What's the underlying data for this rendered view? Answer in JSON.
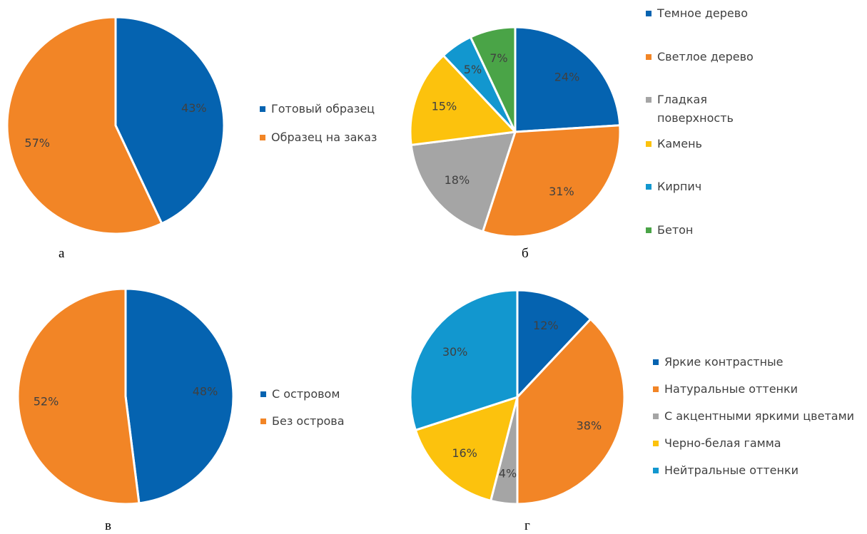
{
  "colors": {
    "blue": "#0563b0",
    "orange": "#f28526",
    "gray": "#a5a5a5",
    "yellow": "#fcc20d",
    "lightblue": "#1297cf",
    "green": "#4aa447"
  },
  "chart_data": [
    {
      "type": "pie",
      "panel": "а",
      "start_angle": 0,
      "legend_position": "right",
      "categories": [
        "Готовый образец",
        "Образец на заказ"
      ],
      "values": [
        43,
        57
      ],
      "labels": [
        "43%",
        "57%"
      ],
      "colors": [
        "#0563b0",
        "#f28526"
      ]
    },
    {
      "type": "pie",
      "panel": "б",
      "start_angle": 0,
      "legend_position": "right",
      "categories": [
        "Темное дерево",
        "Светлое дерево",
        "Гладкая поверхность",
        "Камень",
        "Кирпич",
        "Бетон"
      ],
      "values": [
        24,
        31,
        18,
        15,
        5,
        7
      ],
      "labels": [
        "24%",
        "31%",
        "18%",
        "15%",
        "5%",
        "7%"
      ],
      "colors": [
        "#0563b0",
        "#f28526",
        "#a5a5a5",
        "#fcc20d",
        "#1297cf",
        "#4aa447"
      ]
    },
    {
      "type": "pie",
      "panel": "в",
      "start_angle": 0,
      "legend_position": "right",
      "categories": [
        "С островом",
        "Без острова"
      ],
      "values": [
        48,
        52
      ],
      "labels": [
        "48%",
        "52%"
      ],
      "colors": [
        "#0563b0",
        "#f28526"
      ]
    },
    {
      "type": "pie",
      "panel": "г",
      "start_angle": 0,
      "legend_position": "right",
      "categories": [
        "Яркие контрастные",
        "Натуральные оттенки",
        "С акцентными яркими цветами",
        "Черно-белая гамма",
        "Нейтральные оттенки"
      ],
      "values": [
        12,
        38,
        4,
        16,
        30
      ],
      "labels": [
        "12%",
        "38%",
        "4%",
        "16%",
        "30%"
      ],
      "colors": [
        "#0563b0",
        "#f28526",
        "#a5a5a5",
        "#fcc20d",
        "#1297cf"
      ]
    }
  ]
}
